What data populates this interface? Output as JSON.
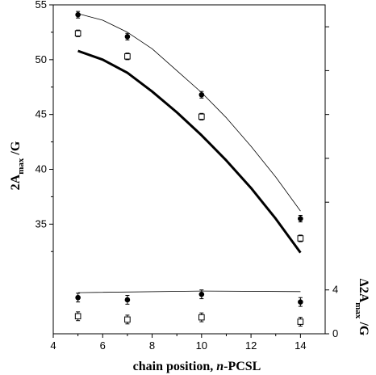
{
  "chart_data": {
    "type": "scatter",
    "xlabel": {
      "text": "chain position, ",
      "italic": "n",
      "suffix": "-PCSL"
    },
    "ylabel_left": {
      "main": "2A",
      "sub": "max",
      "unit": " /G"
    },
    "ylabel_right": {
      "main": "Δ2A",
      "sub": "max",
      "unit": " /G"
    },
    "xlim": [
      4,
      15
    ],
    "ylim_left": [
      25,
      55
    ],
    "ylim_right": [
      0,
      30
    ],
    "x_ticks": [
      4,
      6,
      8,
      10,
      12,
      14
    ],
    "y_ticks_left": [
      35,
      40,
      45,
      50,
      55
    ],
    "y_ticks_right_labeled": [
      0,
      4
    ],
    "y_ticks_right_minor": [
      12,
      16,
      20,
      24,
      28
    ],
    "grid": false,
    "series": [
      {
        "marker": "filled-circle",
        "axis": "left",
        "x": [
          5,
          7,
          10,
          14
        ],
        "y": [
          54.1,
          52.1,
          46.8,
          35.5
        ],
        "yerr": [
          0.3,
          0.3,
          0.3,
          0.3
        ]
      },
      {
        "marker": "open-square",
        "axis": "left",
        "x": [
          5,
          7,
          10,
          14
        ],
        "y": [
          52.4,
          50.3,
          44.8,
          33.7
        ],
        "yerr": [
          0.3,
          0.3,
          0.3,
          0.3
        ]
      },
      {
        "line": "thin",
        "axis": "left",
        "x": [
          5,
          6,
          7,
          8,
          9,
          10,
          11,
          12,
          13,
          14
        ],
        "y": [
          54.2,
          53.6,
          52.5,
          51.0,
          49.0,
          47.0,
          44.7,
          42.1,
          39.3,
          36.2
        ]
      },
      {
        "line": "thick",
        "axis": "left",
        "x": [
          5,
          6,
          7,
          8,
          9,
          10,
          11,
          12,
          13,
          14
        ],
        "y": [
          50.8,
          50.0,
          48.8,
          47.1,
          45.2,
          43.1,
          40.8,
          38.3,
          35.5,
          32.4
        ]
      },
      {
        "marker": "filled-circle",
        "axis": "right",
        "x": [
          5,
          7,
          10,
          14
        ],
        "y": [
          3.3,
          3.1,
          3.6,
          2.9
        ],
        "yerr": [
          0.4,
          0.4,
          0.4,
          0.4
        ]
      },
      {
        "marker": "open-square",
        "axis": "right",
        "x": [
          5,
          7,
          10,
          14
        ],
        "y": [
          1.6,
          1.3,
          1.5,
          1.1
        ],
        "yerr": [
          0.4,
          0.4,
          0.4,
          0.4
        ]
      },
      {
        "line": "thin",
        "axis": "right",
        "x": [
          5,
          10,
          14
        ],
        "y": [
          3.75,
          3.9,
          3.85
        ]
      }
    ]
  }
}
